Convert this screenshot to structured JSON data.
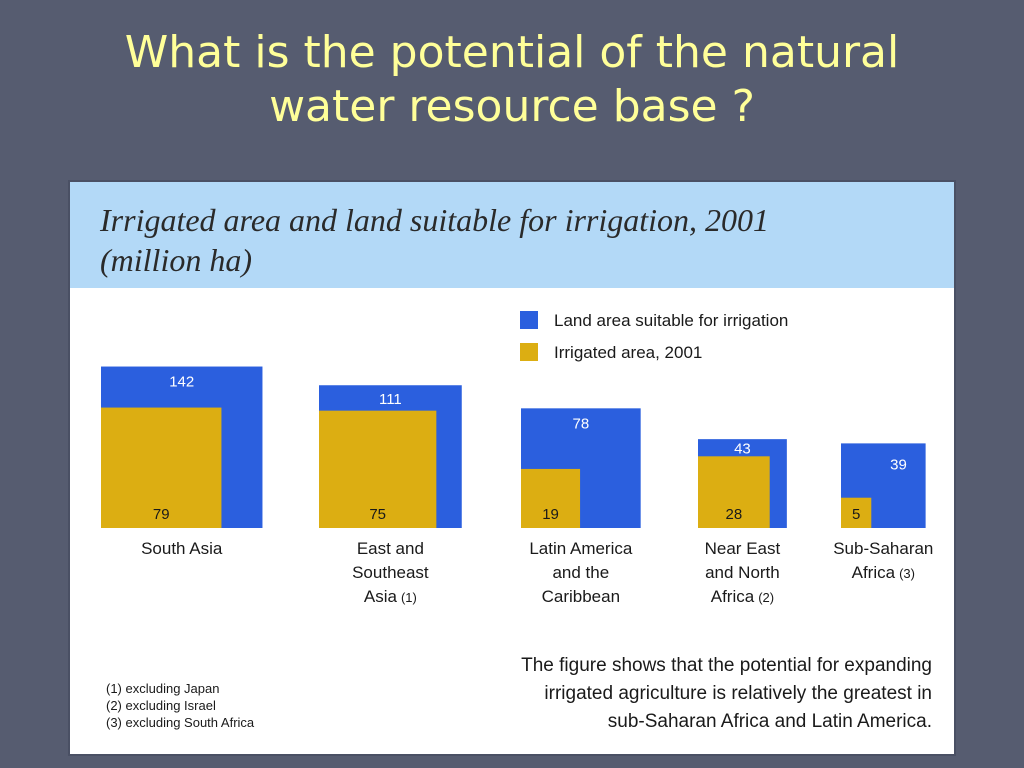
{
  "slide": {
    "title_lines": [
      "What is the potential of the natural",
      "water resource base ?"
    ]
  },
  "chart_data": {
    "type": "bar",
    "title_lines": [
      "Irrigated area and land suitable for irrigation, 2001",
      "(million ha)"
    ],
    "categories": [
      {
        "lines": [
          "South Asia"
        ],
        "footnote": ""
      },
      {
        "lines": [
          "East and",
          "Southeast",
          "Asia"
        ],
        "footnote": "(1)"
      },
      {
        "lines": [
          "Latin America",
          "and the",
          "Caribbean"
        ],
        "footnote": ""
      },
      {
        "lines": [
          "Near East",
          "and North",
          "Africa"
        ],
        "footnote": "(2)"
      },
      {
        "lines": [
          "Sub-Saharan",
          "Africa"
        ],
        "footnote": "(3)"
      }
    ],
    "series": [
      {
        "name": "Land area suitable for irrigation",
        "color": "#2b5fde",
        "values": [
          142,
          111,
          78,
          43,
          39
        ]
      },
      {
        "name": "Irrigated area, 2001",
        "color": "#dcae12",
        "values": [
          79,
          75,
          19,
          28,
          5
        ]
      }
    ],
    "legend_position": "top-right",
    "grid": false
  },
  "footnotes": [
    "(1) excluding Japan",
    "(2) excluding Israel",
    "(3) excluding South Africa"
  ],
  "note_lines": [
    "The figure shows that the potential for expanding",
    "irrigated agriculture is relatively the greatest in",
    "sub-Saharan Africa and Latin America."
  ]
}
